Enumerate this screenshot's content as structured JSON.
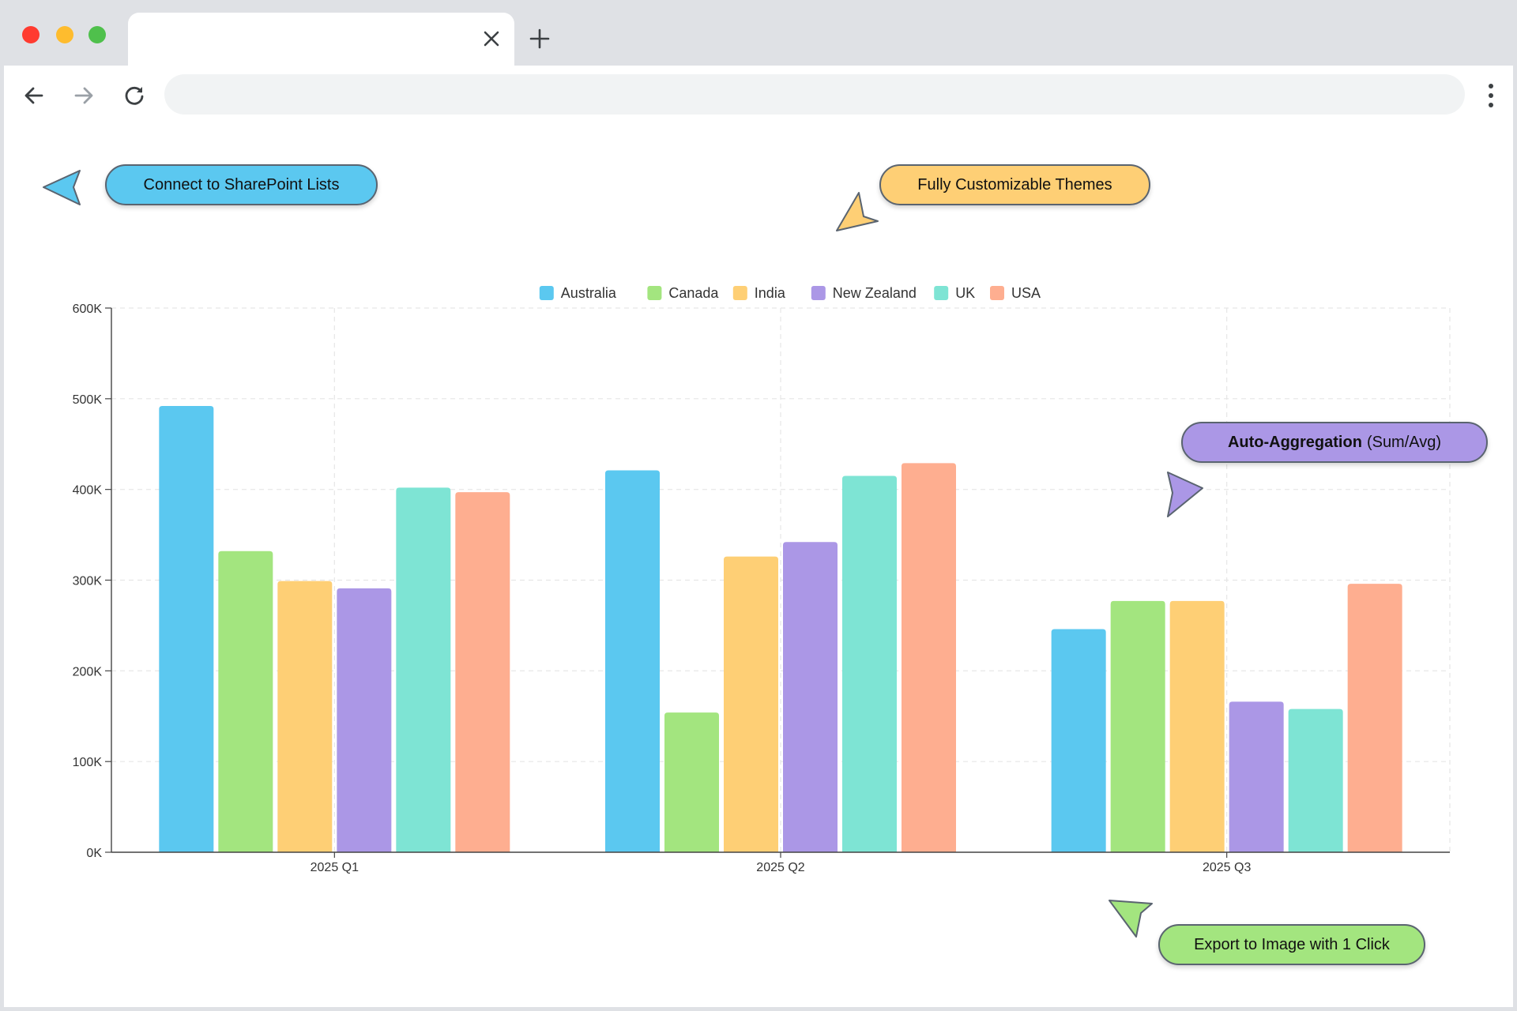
{
  "browser": {
    "tab_title": "",
    "address": ""
  },
  "callouts": {
    "sharepoint": "Connect to SharePoint Lists",
    "themes": "Fully Customizable Themes",
    "aggregation_bold": "Auto-Aggregation",
    "aggregation_rest": "(Sum/Avg)",
    "export": "Export to Image with 1 Click"
  },
  "colors": {
    "sharepoint": "#5bc8f0",
    "themes": "#fecf75",
    "aggregation": "#ab97e6",
    "export": "#a3e57f"
  },
  "chart_data": {
    "type": "bar",
    "categories": [
      "2025 Q1",
      "2025 Q2",
      "2025 Q3"
    ],
    "series": [
      {
        "name": "Australia",
        "color": "#5bc8f0",
        "values": [
          492000,
          421000,
          246000
        ]
      },
      {
        "name": "Canada",
        "color": "#a3e57f",
        "values": [
          332000,
          154000,
          277000
        ]
      },
      {
        "name": "India",
        "color": "#fecf75",
        "values": [
          299000,
          326000,
          277000
        ]
      },
      {
        "name": "New Zealand",
        "color": "#ab97e6",
        "values": [
          291000,
          342000,
          166000
        ]
      },
      {
        "name": "UK",
        "color": "#7ee4d4",
        "values": [
          402000,
          415000,
          158000
        ]
      },
      {
        "name": "USA",
        "color": "#feae90",
        "values": [
          397000,
          429000,
          296000
        ]
      }
    ],
    "yticks": [
      "0K",
      "100K",
      "200K",
      "300K",
      "400K",
      "500K",
      "600K"
    ],
    "ylim": [
      0,
      600000
    ],
    "grid": true,
    "legend_position": "top-center"
  }
}
